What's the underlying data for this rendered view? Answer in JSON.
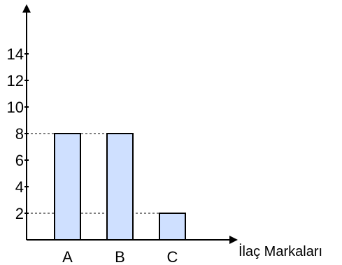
{
  "chart_data": {
    "type": "bar",
    "categories": [
      "A",
      "B",
      "C"
    ],
    "values": [
      8,
      8,
      2
    ],
    "xlabel": "İlaç Markaları",
    "ylabel": "",
    "yticks": [
      2,
      4,
      6,
      8,
      10,
      12,
      14
    ],
    "ylim": [
      0,
      16
    ],
    "grid": false,
    "legend": "none",
    "reference_lines": [
      8,
      2
    ],
    "colors": {
      "bar_fill": "#cfe0ff",
      "bar_stroke": "#000000",
      "axis": "#000000",
      "reference_line": "#000000"
    }
  }
}
